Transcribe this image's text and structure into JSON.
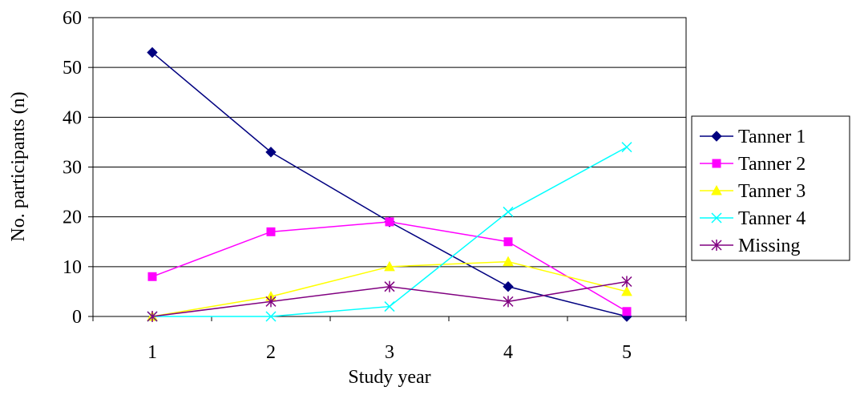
{
  "chart_data": {
    "type": "line",
    "xlabel": "Study year",
    "ylabel": "No. participants (n)",
    "x": [
      1,
      2,
      3,
      4,
      5
    ],
    "ylim": [
      0,
      60
    ],
    "yticks": [
      0,
      10,
      20,
      30,
      40,
      50,
      60
    ],
    "grid": "horizontal",
    "legend_position": "right",
    "series": [
      {
        "name": "Tanner 1",
        "values": [
          53,
          33,
          19,
          6,
          0
        ],
        "color": "#000080",
        "marker": "diamond"
      },
      {
        "name": "Tanner 2",
        "values": [
          8,
          17,
          19,
          15,
          1
        ],
        "color": "#FF00FF",
        "marker": "square"
      },
      {
        "name": "Tanner 3",
        "values": [
          0,
          4,
          10,
          11,
          5
        ],
        "color": "#FFFF00",
        "marker": "triangle"
      },
      {
        "name": "Tanner 4",
        "values": [
          0,
          0,
          2,
          21,
          34
        ],
        "color": "#00FFFF",
        "marker": "x"
      },
      {
        "name": "Missing",
        "values": [
          0,
          3,
          6,
          3,
          7
        ],
        "color": "#800080",
        "marker": "star"
      }
    ]
  }
}
